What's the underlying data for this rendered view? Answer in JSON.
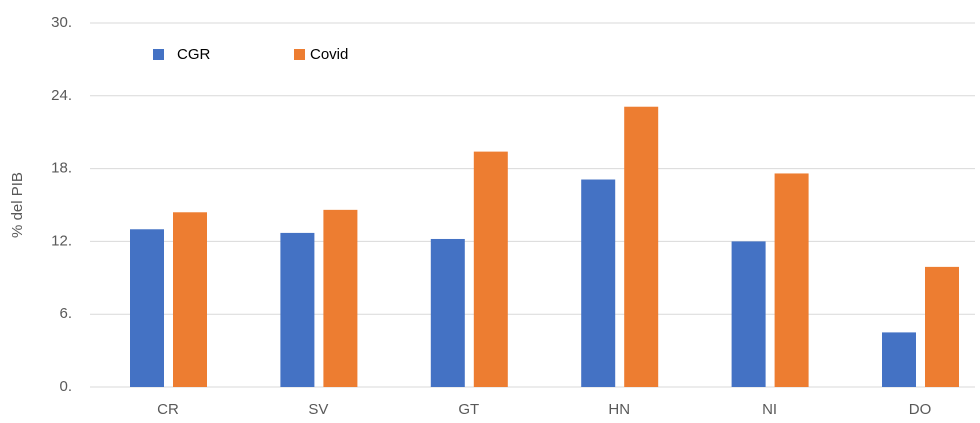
{
  "chart_data": {
    "type": "bar",
    "y_label": "% del PIB",
    "categories": [
      "CR",
      "SV",
      "GT",
      "HN",
      "NI",
      "DO"
    ],
    "series": [
      {
        "name": "CGR",
        "color": "#4472c4",
        "values": [
          13.0,
          12.7,
          12.2,
          17.1,
          12.0,
          4.5
        ]
      },
      {
        "name": "Covid",
        "color": "#ed7d31",
        "values": [
          14.4,
          14.6,
          19.4,
          23.1,
          17.6,
          9.9
        ]
      }
    ],
    "ylim": [
      0,
      30
    ],
    "yticks": [
      {
        "value": 0,
        "label": "0."
      },
      {
        "value": 6,
        "label": "6."
      },
      {
        "value": 12,
        "label": "12."
      },
      {
        "value": 18,
        "label": "18."
      },
      {
        "value": 24,
        "label": "24."
      },
      {
        "value": 30,
        "label": "30."
      }
    ],
    "grid": true,
    "legend": "top-left"
  }
}
